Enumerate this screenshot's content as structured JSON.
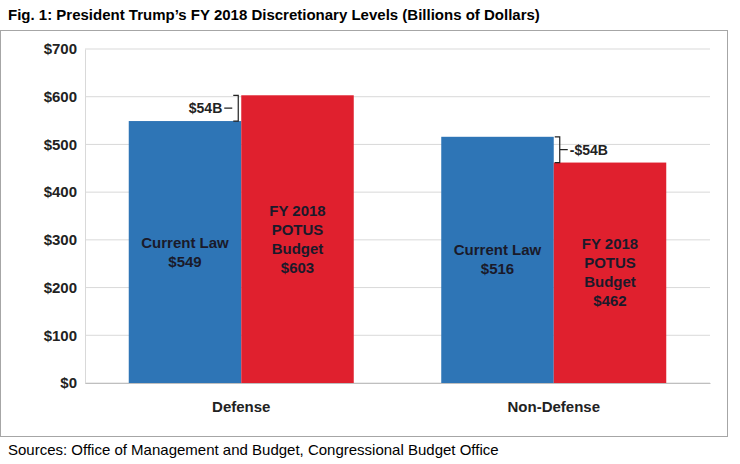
{
  "chart_data": {
    "type": "bar",
    "title": "Fig. 1: President Trump’s FY 2018 Discretionary Levels (Billions of Dollars)",
    "categories": [
      "Defense",
      "Non-Defense"
    ],
    "series": [
      {
        "name": "Current Law",
        "color": "#2e75b6",
        "values": [
          549,
          516
        ],
        "value_labels": [
          "$549",
          "$516"
        ]
      },
      {
        "name": "FY 2018 POTUS Budget",
        "color": "#e0202e",
        "values": [
          603,
          462
        ],
        "value_labels": [
          "$603",
          "$462"
        ]
      }
    ],
    "ylim": [
      0,
      700
    ],
    "yticks": [
      {
        "value": 0,
        "label": "$0"
      },
      {
        "value": 100,
        "label": "$100"
      },
      {
        "value": 200,
        "label": "$200"
      },
      {
        "value": 300,
        "label": "$300"
      },
      {
        "value": 400,
        "label": "$400"
      },
      {
        "value": 500,
        "label": "$500"
      },
      {
        "value": 600,
        "label": "$600"
      },
      {
        "value": 700,
        "label": "$700"
      }
    ],
    "grid": true,
    "data_labels": true,
    "annotations": [
      "$54B",
      "-$54B"
    ],
    "source": "Sources: Office of Management and Budget, Congressional Budget Office"
  }
}
